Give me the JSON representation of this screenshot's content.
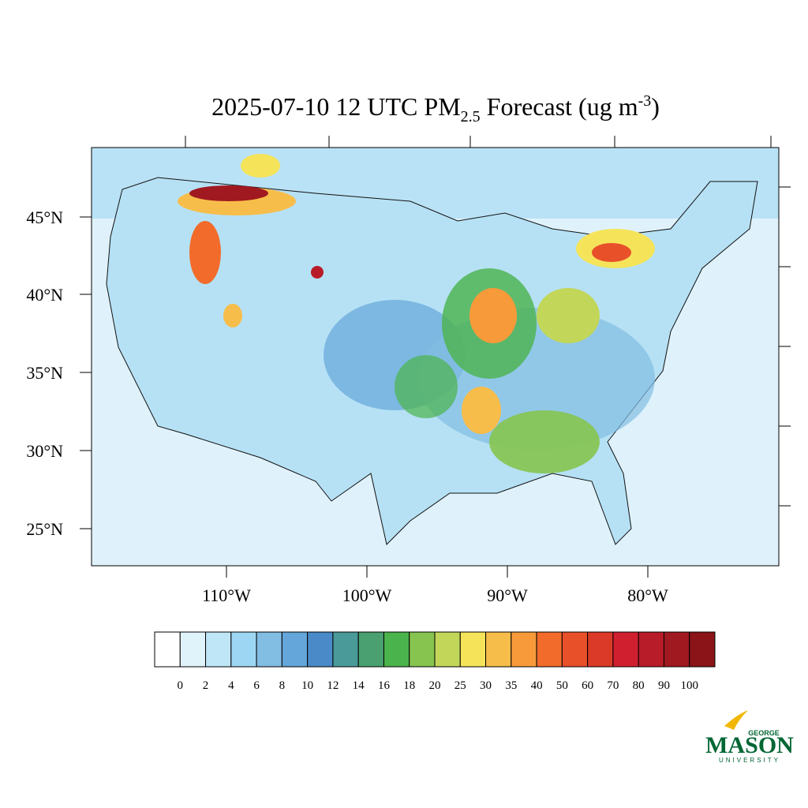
{
  "title": {
    "prefix": "2025-07-10 12 UTC PM",
    "subscript": "2.5",
    "middle": " Forecast (ug m",
    "superscript": "-3",
    "suffix": ")"
  },
  "map": {
    "lat_labels": [
      "45°N",
      "40°N",
      "35°N",
      "30°N",
      "25°N"
    ],
    "lon_labels": [
      "110°W",
      "100°W",
      "90°W",
      "80°W"
    ]
  },
  "colorbar": {
    "levels": [
      0,
      2,
      4,
      6,
      8,
      10,
      12,
      14,
      16,
      18,
      20,
      25,
      30,
      35,
      40,
      50,
      60,
      70,
      80,
      90,
      100
    ],
    "colors": [
      "#ffffff",
      "#e0f3fb",
      "#bfe6f7",
      "#9dd6f2",
      "#82bde3",
      "#64a6d9",
      "#4a8ac8",
      "#4a9a9a",
      "#4aa070",
      "#4bb34b",
      "#86c44f",
      "#c2d65a",
      "#f5e45a",
      "#f7bd4a",
      "#f79a3a",
      "#f26b2a",
      "#e8502a",
      "#dc3a28",
      "#d02030",
      "#b81c28",
      "#a01820",
      "#8a1418"
    ]
  },
  "logo": {
    "top": "GEORGE",
    "main": "MASON",
    "bottom": "UNIVERSITY"
  }
}
